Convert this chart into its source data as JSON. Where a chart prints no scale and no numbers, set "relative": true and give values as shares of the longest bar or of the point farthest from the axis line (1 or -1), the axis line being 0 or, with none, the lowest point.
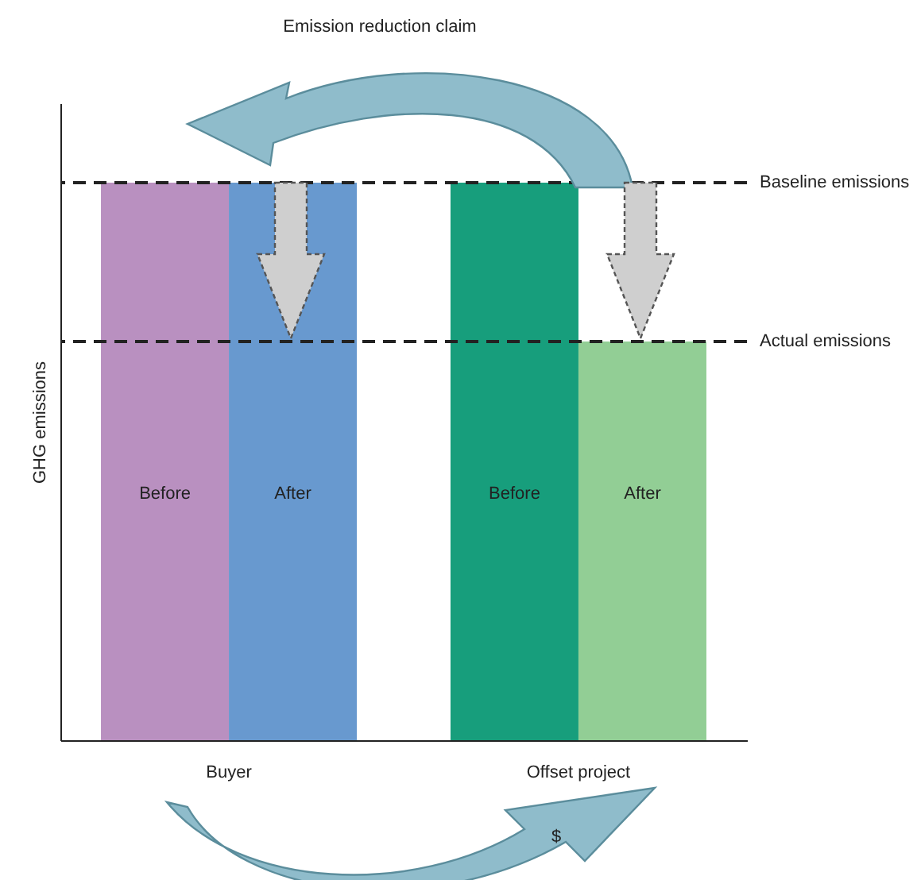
{
  "chart_data": {
    "type": "bar",
    "relative": true,
    "ylabel": "GHG emissions",
    "categories": [
      "Buyer",
      "Offset project"
    ],
    "series": [
      {
        "name": "Before",
        "colors": [
          "#b990c0",
          "#179e7c"
        ],
        "values": [
          1,
          1
        ]
      },
      {
        "name": "After",
        "colors": [
          "#6899cf",
          "#92ce95"
        ],
        "values": [
          1,
          0.715
        ]
      }
    ],
    "ref_lines": [
      {
        "axis": "y",
        "value": 1,
        "label": "Baseline emissions",
        "color": "#222222",
        "line_style": "dashed"
      },
      {
        "axis": "y",
        "value": 0.715,
        "label": "Actual emissions",
        "color": "#222222",
        "line_style": "dashed"
      }
    ],
    "annotations": [
      "Emission reduction claim",
      "$"
    ]
  }
}
